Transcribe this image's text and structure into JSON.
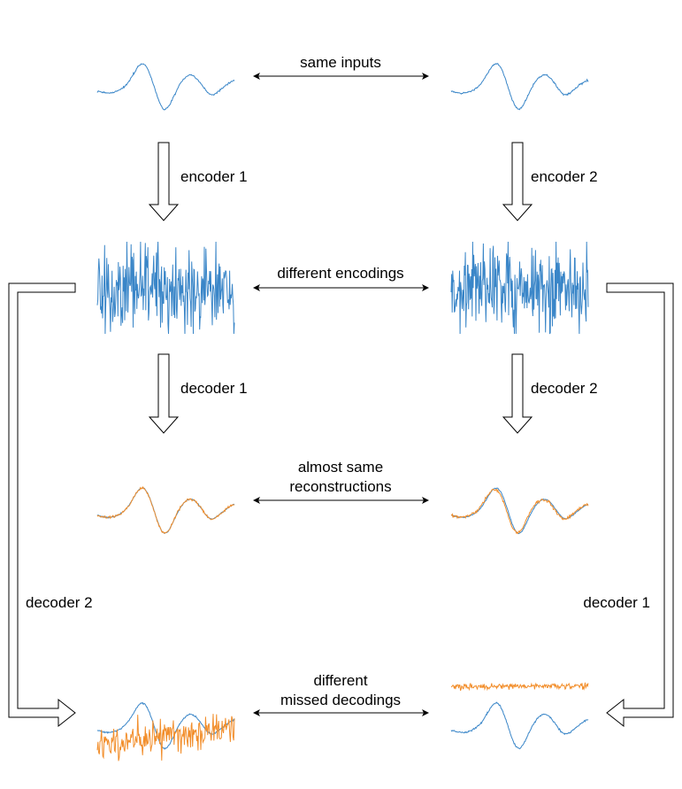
{
  "labels": {
    "same_inputs": "same inputs",
    "encoder_left": "encoder 1",
    "encoder_right": "encoder 2",
    "different_encodings": "different encodings",
    "decoder_left": "decoder 1",
    "decoder_right": "decoder 2",
    "almost_same_line1": "almost same",
    "almost_same_line2": "reconstructions",
    "cross_left": "decoder 2",
    "cross_right": "decoder 1",
    "missed_line1": "different",
    "missed_line2": "missed decodings"
  },
  "colors": {
    "signal": "#3a86c8",
    "reconstruction": "#f28e2b",
    "arrow_stroke": "#000000",
    "arrow_fill": "#ffffff"
  }
}
